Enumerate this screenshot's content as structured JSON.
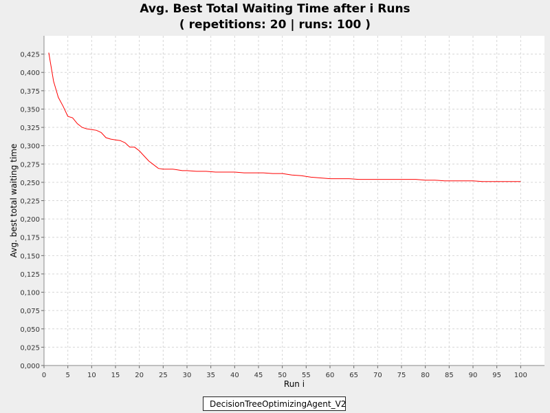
{
  "chart_data": {
    "type": "line",
    "title": "Avg. Best Total Waiting Time after i Runs",
    "subtitle": "( repetitions: 20 | runs: 100 )",
    "xlabel": "Run i",
    "ylabel": "Avg. best total waiting time",
    "xlim": [
      0,
      105
    ],
    "ylim": [
      0.0,
      0.45
    ],
    "x_ticks": [
      "0",
      "5",
      "10",
      "15",
      "20",
      "25",
      "30",
      "35",
      "40",
      "45",
      "50",
      "55",
      "60",
      "65",
      "70",
      "75",
      "80",
      "85",
      "90",
      "95",
      "100"
    ],
    "x_tick_values": [
      0,
      5,
      10,
      15,
      20,
      25,
      30,
      35,
      40,
      45,
      50,
      55,
      60,
      65,
      70,
      75,
      80,
      85,
      90,
      95,
      100
    ],
    "y_ticks": [
      "0,000",
      "0,025",
      "0,050",
      "0,075",
      "0,100",
      "0,125",
      "0,150",
      "0,175",
      "0,200",
      "0,225",
      "0,250",
      "0,275",
      "0,300",
      "0,325",
      "0,350",
      "0,375",
      "0,400",
      "0,425"
    ],
    "y_tick_values": [
      0,
      0.025,
      0.05,
      0.075,
      0.1,
      0.125,
      0.15,
      0.175,
      0.2,
      0.225,
      0.25,
      0.275,
      0.3,
      0.325,
      0.35,
      0.375,
      0.4,
      0.425
    ],
    "grid": true,
    "legend_position": "bottom",
    "series": [
      {
        "name": "DecisionTreeOptimizingAgent_V2",
        "color": "#ff0000",
        "x": [
          1,
          2,
          3,
          4,
          5,
          6,
          7,
          8,
          9,
          10,
          11,
          12,
          13,
          14,
          15,
          16,
          17,
          18,
          19,
          20,
          21,
          22,
          23,
          24,
          25,
          26,
          27,
          28,
          29,
          30,
          32,
          34,
          36,
          38,
          40,
          42,
          44,
          46,
          48,
          50,
          52,
          54,
          56,
          58,
          60,
          62,
          64,
          66,
          68,
          70,
          72,
          74,
          76,
          78,
          80,
          82,
          84,
          86,
          88,
          90,
          92,
          94,
          96,
          98,
          100
        ],
        "y": [
          0.427,
          0.388,
          0.366,
          0.354,
          0.34,
          0.338,
          0.33,
          0.325,
          0.323,
          0.322,
          0.321,
          0.318,
          0.311,
          0.309,
          0.308,
          0.307,
          0.304,
          0.298,
          0.298,
          0.293,
          0.286,
          0.279,
          0.274,
          0.269,
          0.268,
          0.268,
          0.268,
          0.267,
          0.266,
          0.266,
          0.265,
          0.265,
          0.264,
          0.264,
          0.264,
          0.263,
          0.263,
          0.263,
          0.262,
          0.262,
          0.26,
          0.259,
          0.257,
          0.256,
          0.255,
          0.255,
          0.255,
          0.254,
          0.254,
          0.254,
          0.254,
          0.254,
          0.254,
          0.254,
          0.253,
          0.253,
          0.252,
          0.252,
          0.252,
          0.252,
          0.251,
          0.251,
          0.251,
          0.251,
          0.251
        ]
      }
    ]
  }
}
